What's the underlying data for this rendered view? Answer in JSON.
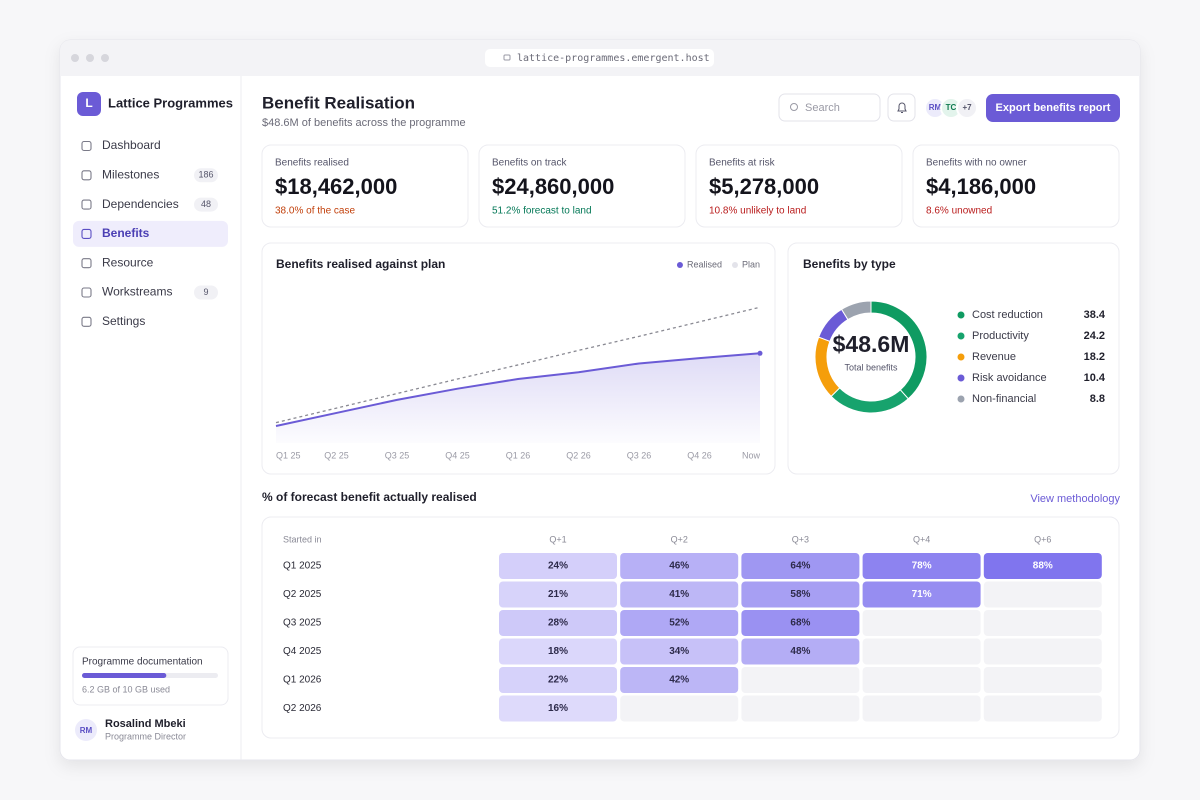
{
  "browser": {
    "url": "lattice-programmes.emergent.host"
  },
  "sidebar": {
    "brand_initial": "L",
    "brand": "Lattice Programmes",
    "nav": [
      {
        "label": "Dashboard"
      },
      {
        "label": "Milestones",
        "badge": "186"
      },
      {
        "label": "Dependencies",
        "badge": "48"
      },
      {
        "label": "Benefits",
        "active": true
      },
      {
        "label": "Resource"
      },
      {
        "label": "Workstreams",
        "badge": "9"
      },
      {
        "label": "Settings"
      }
    ],
    "storage": {
      "title": "Programme documentation",
      "used": 6.2,
      "total": 10,
      "label": "6.2 GB of 10 GB used"
    },
    "user": {
      "initials": "RM",
      "name": "Rosalind Mbeki",
      "role": "Programme Director"
    }
  },
  "header": {
    "title": "Benefit Realisation",
    "subtitle": "$48.6M of benefits across the programme",
    "search": "Search",
    "avatars": [
      "RM",
      "TC",
      "+7"
    ],
    "button": "Export benefits report"
  },
  "kpis": [
    {
      "label": "Benefits realised",
      "value": "$18,462,000",
      "note": "38.0% of the case",
      "note_color": "#c2410c"
    },
    {
      "label": "Benefits on track",
      "value": "$24,860,000",
      "note": "51.2% forecast to land",
      "note_color": "#047857"
    },
    {
      "label": "Benefits at risk",
      "value": "$5,278,000",
      "note": "10.8% unlikely to land",
      "note_color": "#b91c1c"
    },
    {
      "label": "Benefits with no owner",
      "value": "$4,186,000",
      "note": "8.6% unowned",
      "note_color": "#b91c1c"
    }
  ],
  "chart_data": [
    {
      "type": "line",
      "title": "Benefits realised against plan",
      "categories": [
        "Q1 25",
        "Q2 25",
        "Q3 25",
        "Q4 25",
        "Q1 26",
        "Q2 26",
        "Q3 26",
        "Q4 26",
        "Now"
      ],
      "ylim": [
        0,
        33
      ],
      "series": [
        {
          "name": "Realised",
          "color": "#6b5bd6",
          "values": [
            3.5,
            6.2,
            8.9,
            11.2,
            13.2,
            14.6,
            16.4,
            17.5,
            18.5
          ]
        },
        {
          "name": "Plan",
          "color": "#8a8a93",
          "dashed": true,
          "values": [
            4.2,
            7.2,
            10.2,
            13.2,
            16.1,
            19.1,
            22.0,
            25.0,
            28.0
          ]
        }
      ]
    },
    {
      "type": "pie",
      "title": "Benefits by type",
      "center_value": "$48.6M",
      "center_label": "Total benefits",
      "categories": [
        "Cost reduction",
        "Productivity",
        "Revenue",
        "Risk avoidance",
        "Non-financial"
      ],
      "values": [
        38.4,
        24.2,
        18.2,
        10.4,
        8.8
      ],
      "colors": [
        "#0f9b62",
        "#17a36d",
        "#f59e0b",
        "#6b5bd6",
        "#9ca3af"
      ]
    },
    {
      "type": "heatmap",
      "title": "% of forecast benefit actually realised",
      "link": "View methodology",
      "row_header": "Started in",
      "columns": [
        "Q+1",
        "Q+2",
        "Q+3",
        "Q+4",
        "Q+6"
      ],
      "rows": [
        {
          "label": "Q1 2025",
          "values": [
            24,
            46,
            64,
            78,
            88
          ],
          "value_labels": [
            "24%",
            "46%",
            "64%",
            "78%",
            "88%"
          ]
        },
        {
          "label": "Q2 2025",
          "values": [
            21,
            41,
            58,
            71
          ],
          "value_labels": [
            "21%",
            "41%",
            "58%",
            "71%"
          ]
        },
        {
          "label": "Q3 2025",
          "values": [
            28,
            52,
            68
          ],
          "value_labels": [
            "28%",
            "52%",
            "68%"
          ]
        },
        {
          "label": "Q4 2025",
          "values": [
            18,
            34,
            48
          ],
          "value_labels": [
            "18%",
            "34%",
            "48%"
          ]
        },
        {
          "label": "Q1 2026",
          "values": [
            22,
            42
          ],
          "value_labels": [
            "22%",
            "42%"
          ]
        },
        {
          "label": "Q2 2026",
          "values": [
            16
          ],
          "value_labels": [
            "16%"
          ]
        }
      ]
    }
  ]
}
